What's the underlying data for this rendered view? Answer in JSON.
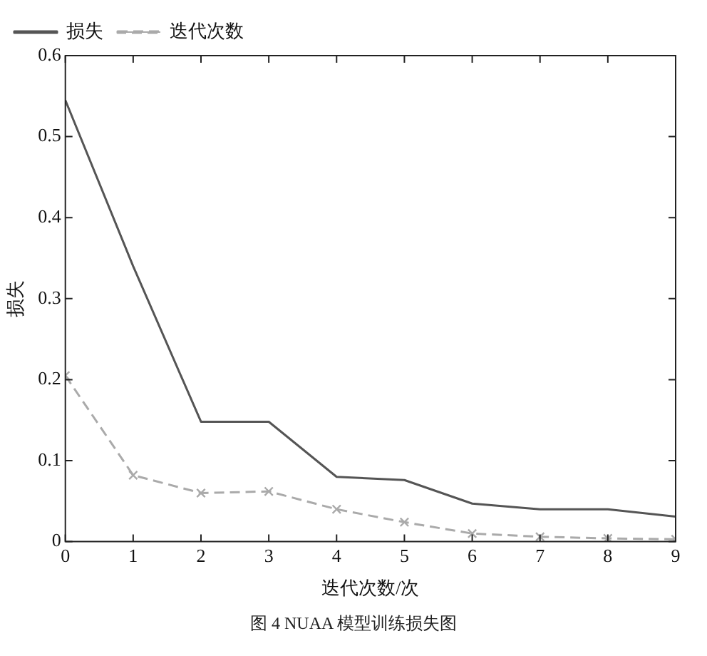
{
  "chart_data": {
    "type": "line",
    "xlabel": "迭代次数/次",
    "ylabel": "损失",
    "x": [
      0,
      1,
      2,
      3,
      4,
      5,
      6,
      7,
      8,
      9
    ],
    "series": [
      {
        "name": "损失",
        "color": "#555555",
        "marker": "none",
        "line_style": "solid",
        "values": [
          0.545,
          0.34,
          0.148,
          0.148,
          0.08,
          0.076,
          0.047,
          0.04,
          0.04,
          0.031
        ]
      },
      {
        "name": "迭代次数",
        "color": "#aaaaaa",
        "marker": "cross",
        "line_style": "dashed",
        "values": [
          0.205,
          0.082,
          0.06,
          0.062,
          0.04,
          0.024,
          0.01,
          0.006,
          0.004,
          0.003
        ]
      }
    ],
    "xlim": [
      0,
      9
    ],
    "xticks": [
      0,
      1,
      2,
      3,
      4,
      5,
      6,
      7,
      8,
      9
    ],
    "ylim": [
      0,
      0.6
    ],
    "yticks": [
      {
        "value": 0,
        "label": "0"
      },
      0.1,
      0.2,
      0.3,
      0.4,
      0.5,
      0.6
    ],
    "grid": false,
    "legend": "top left",
    "annotations": [
      "图 4  NUAA 模型训练损失图"
    ]
  }
}
